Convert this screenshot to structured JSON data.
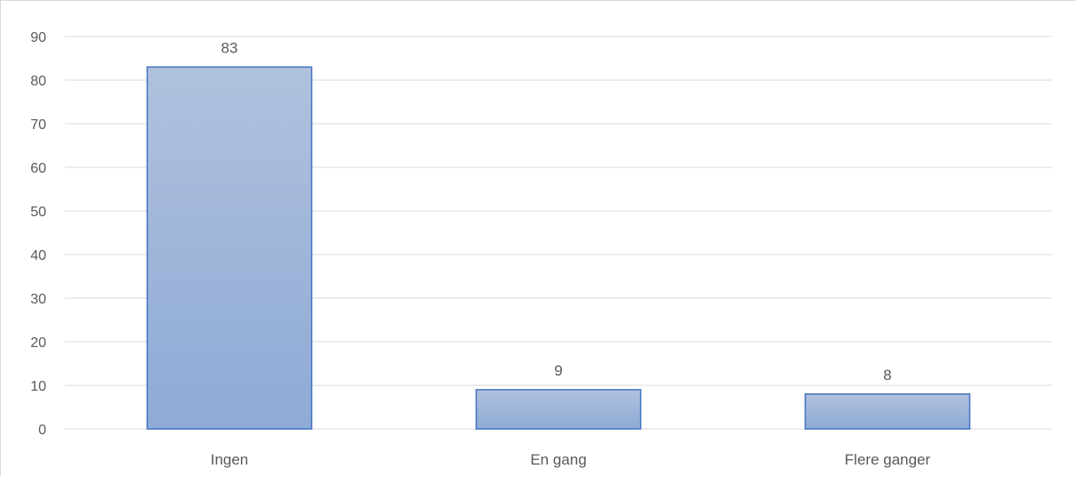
{
  "chart_data": {
    "type": "bar",
    "categories": [
      "Ingen",
      "En gang",
      "Flere ganger"
    ],
    "values": [
      83,
      9,
      8
    ],
    "data_labels": [
      "83",
      "9",
      "8"
    ],
    "ylim": [
      0,
      90
    ],
    "yticks": [
      0,
      10,
      20,
      30,
      40,
      50,
      60,
      70,
      80,
      90
    ],
    "ytick_labels": [
      "0",
      "10",
      "20",
      "30",
      "40",
      "50",
      "60",
      "70",
      "80",
      "90"
    ],
    "grid": true,
    "legend": "none",
    "colors": {
      "bar_fill_top": "#b0c1dd",
      "bar_fill_bottom": "#8eaad6",
      "bar_stroke": "#4472c4",
      "gridline": "#d9d9d9",
      "text": "#595959"
    }
  }
}
